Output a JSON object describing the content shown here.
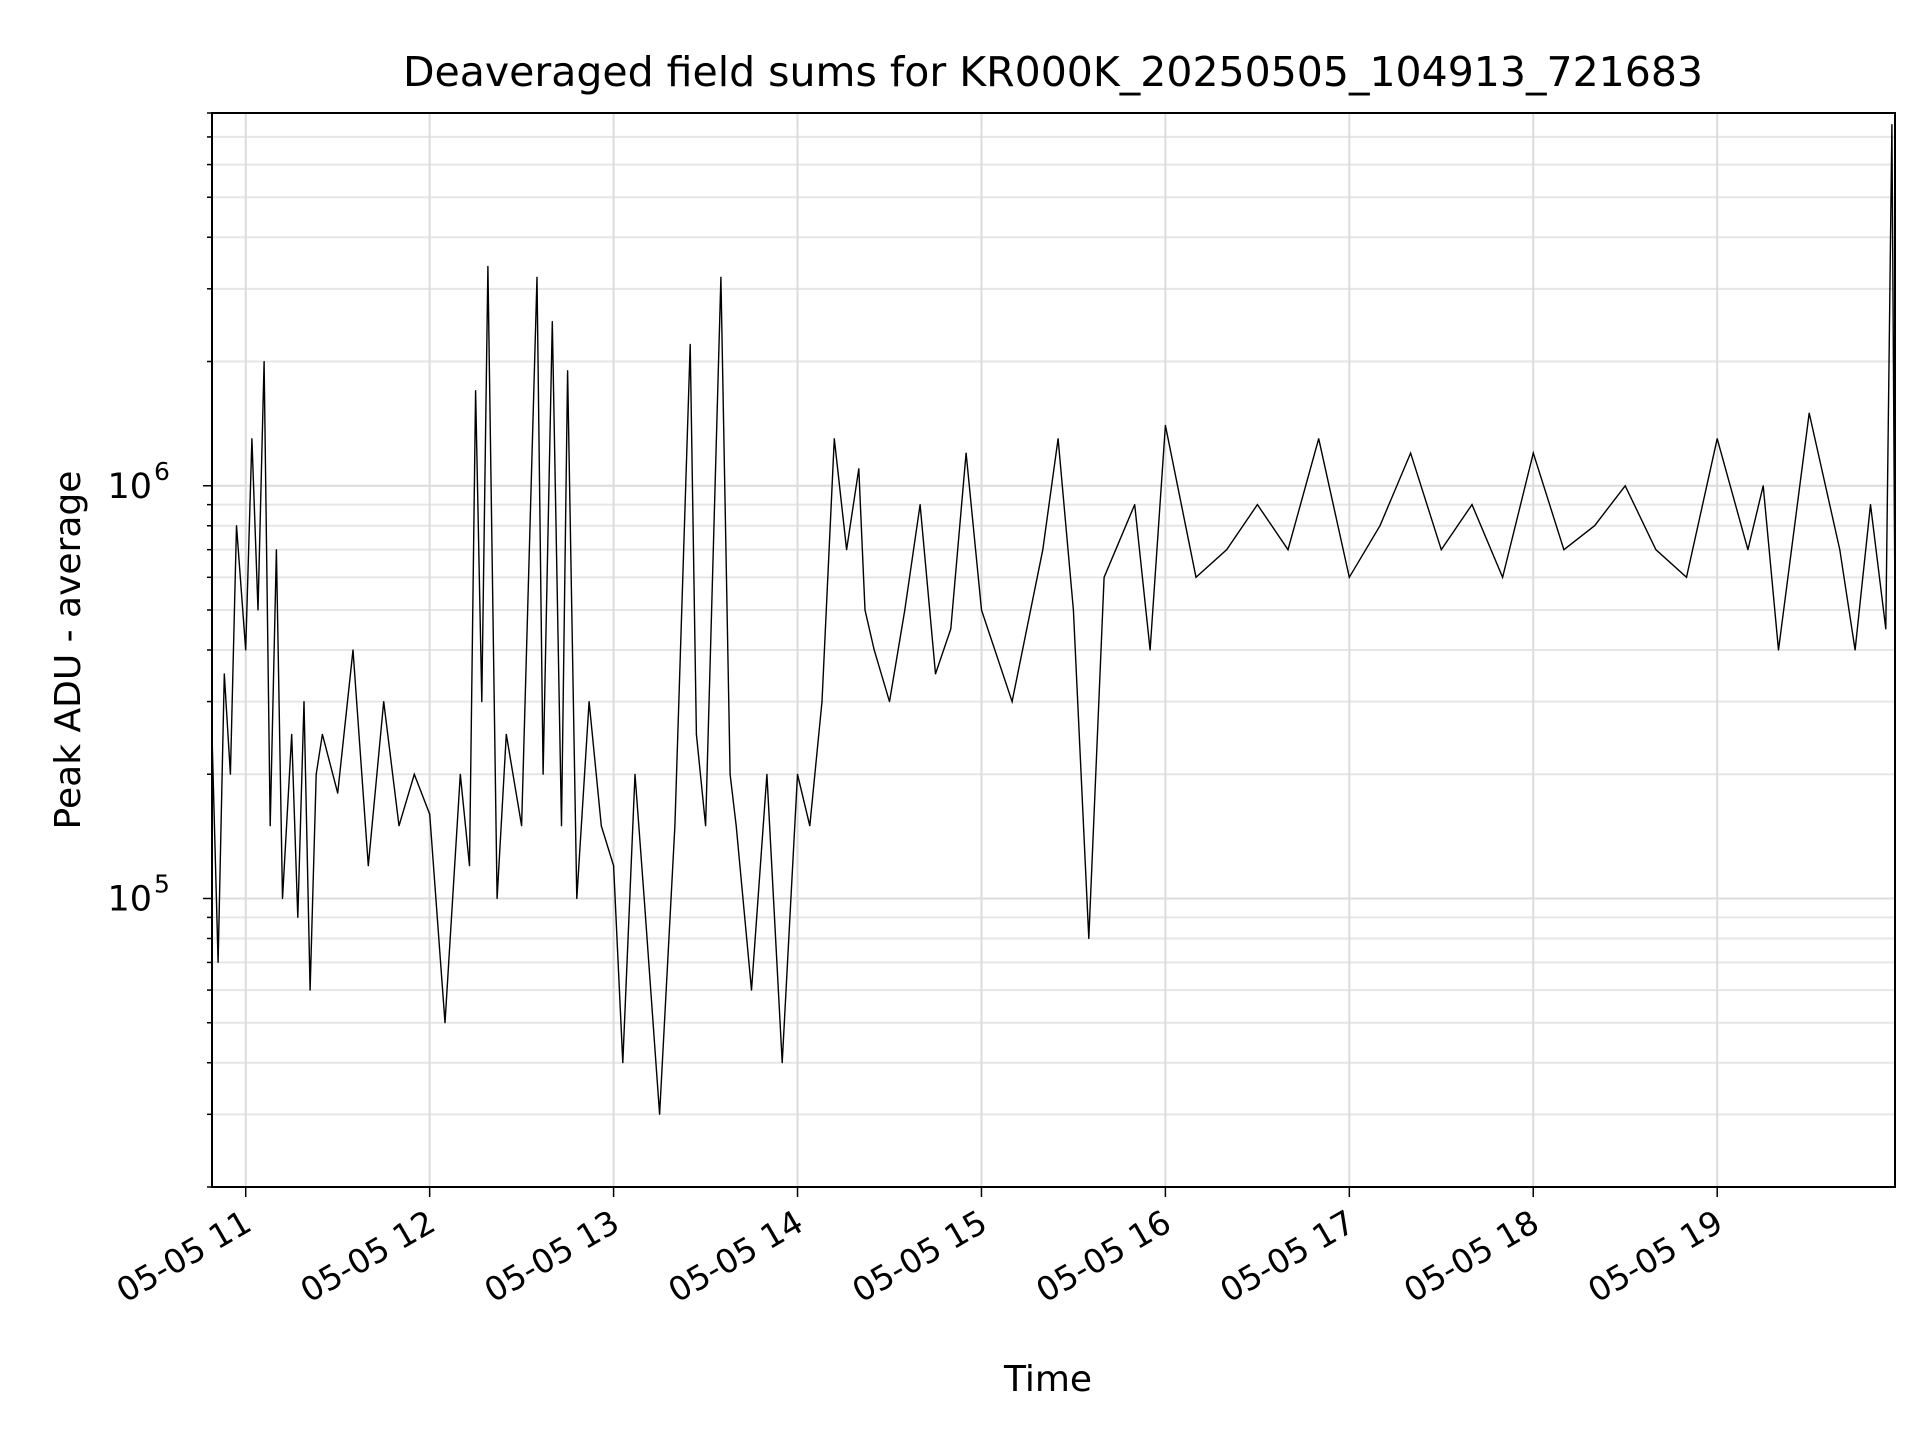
{
  "chart_data": {
    "type": "line",
    "title": "Deaveraged field sums for KR000K_20250505_104913_721683",
    "xlabel": "Time",
    "ylabel": "Peak ADU - average",
    "x_range": [
      "2025-05-05 10:49",
      "2025-05-05 19:58"
    ],
    "x_ticks": [
      {
        "time": "2025-05-05 11:00",
        "label": "05-05 11"
      },
      {
        "time": "2025-05-05 12:00",
        "label": "05-05 12"
      },
      {
        "time": "2025-05-05 13:00",
        "label": "05-05 13"
      },
      {
        "time": "2025-05-05 14:00",
        "label": "05-05 14"
      },
      {
        "time": "2025-05-05 15:00",
        "label": "05-05 15"
      },
      {
        "time": "2025-05-05 16:00",
        "label": "05-05 16"
      },
      {
        "time": "2025-05-05 17:00",
        "label": "05-05 17"
      },
      {
        "time": "2025-05-05 18:00",
        "label": "05-05 18"
      },
      {
        "time": "2025-05-05 19:00",
        "label": "05-05 19"
      }
    ],
    "y_scale": "log",
    "ylim": [
      20000,
      8000000
    ],
    "y_ticks": [
      {
        "value": 100000,
        "base": "10",
        "exp": "5"
      },
      {
        "value": 1000000,
        "base": "10",
        "exp": "6"
      }
    ],
    "grid": true,
    "line_color": "#000000",
    "series": [
      {
        "x": [
          "2025-05-05 10:49",
          "2025-05-05 10:51",
          "2025-05-05 10:53",
          "2025-05-05 10:55",
          "2025-05-05 10:57",
          "2025-05-05 11:00",
          "2025-05-05 11:02",
          "2025-05-05 11:04",
          "2025-05-05 11:06",
          "2025-05-05 11:08",
          "2025-05-05 11:10",
          "2025-05-05 11:12",
          "2025-05-05 11:15",
          "2025-05-05 11:17",
          "2025-05-05 11:19",
          "2025-05-05 11:21",
          "2025-05-05 11:23",
          "2025-05-05 11:25",
          "2025-05-05 11:30",
          "2025-05-05 11:35",
          "2025-05-05 11:40",
          "2025-05-05 11:45",
          "2025-05-05 11:50",
          "2025-05-05 11:55",
          "2025-05-05 12:00",
          "2025-05-05 12:05",
          "2025-05-05 12:10",
          "2025-05-05 12:13",
          "2025-05-05 12:15",
          "2025-05-05 12:17",
          "2025-05-05 12:19",
          "2025-05-05 12:22",
          "2025-05-05 12:25",
          "2025-05-05 12:30",
          "2025-05-05 12:35",
          "2025-05-05 12:37",
          "2025-05-05 12:40",
          "2025-05-05 12:43",
          "2025-05-05 12:45",
          "2025-05-05 12:48",
          "2025-05-05 12:52",
          "2025-05-05 12:56",
          "2025-05-05 13:00",
          "2025-05-05 13:03",
          "2025-05-05 13:07",
          "2025-05-05 13:10",
          "2025-05-05 13:15",
          "2025-05-05 13:20",
          "2025-05-05 13:25",
          "2025-05-05 13:27",
          "2025-05-05 13:30",
          "2025-05-05 13:35",
          "2025-05-05 13:38",
          "2025-05-05 13:40",
          "2025-05-05 13:45",
          "2025-05-05 13:50",
          "2025-05-05 13:55",
          "2025-05-05 14:00",
          "2025-05-05 14:04",
          "2025-05-05 14:08",
          "2025-05-05 14:12",
          "2025-05-05 14:16",
          "2025-05-05 14:20",
          "2025-05-05 14:22",
          "2025-05-05 14:25",
          "2025-05-05 14:30",
          "2025-05-05 14:35",
          "2025-05-05 14:40",
          "2025-05-05 14:45",
          "2025-05-05 14:50",
          "2025-05-05 14:55",
          "2025-05-05 15:00",
          "2025-05-05 15:10",
          "2025-05-05 15:20",
          "2025-05-05 15:25",
          "2025-05-05 15:30",
          "2025-05-05 15:35",
          "2025-05-05 15:40",
          "2025-05-05 15:50",
          "2025-05-05 15:55",
          "2025-05-05 16:00",
          "2025-05-05 16:10",
          "2025-05-05 16:20",
          "2025-05-05 16:30",
          "2025-05-05 16:40",
          "2025-05-05 16:50",
          "2025-05-05 17:00",
          "2025-05-05 17:10",
          "2025-05-05 17:20",
          "2025-05-05 17:30",
          "2025-05-05 17:40",
          "2025-05-05 17:50",
          "2025-05-05 18:00",
          "2025-05-05 18:10",
          "2025-05-05 18:20",
          "2025-05-05 18:30",
          "2025-05-05 18:40",
          "2025-05-05 18:50",
          "2025-05-05 19:00",
          "2025-05-05 19:10",
          "2025-05-05 19:15",
          "2025-05-05 19:20",
          "2025-05-05 19:30",
          "2025-05-05 19:40",
          "2025-05-05 19:45",
          "2025-05-05 19:50",
          "2025-05-05 19:55",
          "2025-05-05 19:57",
          "2025-05-05 19:58"
        ],
        "y": [
          250000,
          70000,
          350000,
          200000,
          800000,
          400000,
          1300000,
          500000,
          2000000,
          150000,
          700000,
          100000,
          250000,
          90000,
          300000,
          60000,
          200000,
          250000,
          180000,
          400000,
          120000,
          300000,
          150000,
          200000,
          160000,
          50000,
          200000,
          120000,
          1700000,
          300000,
          3400000,
          100000,
          250000,
          150000,
          3200000,
          200000,
          2500000,
          150000,
          1900000,
          100000,
          300000,
          150000,
          120000,
          40000,
          200000,
          100000,
          30000,
          150000,
          2200000,
          250000,
          150000,
          3200000,
          200000,
          150000,
          60000,
          200000,
          40000,
          200000,
          150000,
          300000,
          1300000,
          700000,
          1100000,
          500000,
          400000,
          300000,
          500000,
          900000,
          350000,
          450000,
          1200000,
          500000,
          300000,
          700000,
          1300000,
          500000,
          80000,
          600000,
          900000,
          400000,
          1400000,
          600000,
          700000,
          900000,
          700000,
          1300000,
          600000,
          800000,
          1200000,
          700000,
          900000,
          600000,
          1200000,
          700000,
          800000,
          1000000,
          700000,
          600000,
          1300000,
          700000,
          1000000,
          400000,
          1500000,
          700000,
          400000,
          900000,
          450000,
          7500000,
          500000
        ]
      }
    ]
  }
}
